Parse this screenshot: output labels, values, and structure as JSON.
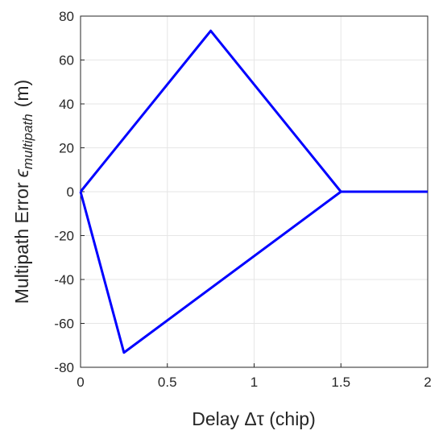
{
  "chart_data": {
    "type": "line",
    "xlabel": "Delay Δτ (chip)",
    "ylabel": "Multipath Error",
    "ylabel_symbol": "ϵ",
    "ylabel_subscript": "multipath",
    "ylabel_unit": "(m)",
    "series": [
      {
        "color": "#0000ff",
        "x": [
          0,
          0.75,
          1.5,
          2
        ],
        "values": [
          0,
          73.3,
          0,
          0
        ]
      },
      {
        "color": "#0000ff",
        "x": [
          0,
          0.25,
          1.5,
          2
        ],
        "values": [
          0,
          -73.3,
          0,
          0
        ]
      }
    ],
    "xlim": [
      0,
      2
    ],
    "xticks": [
      0,
      0.5,
      1,
      1.5,
      2
    ],
    "ylim": [
      -80,
      80
    ],
    "yticks": [
      -80,
      -60,
      -40,
      -20,
      0,
      20,
      40,
      60,
      80
    ],
    "grid": true
  }
}
